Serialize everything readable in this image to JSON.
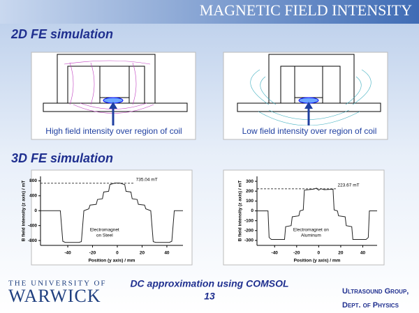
{
  "header": {
    "title": "MAGNETIC FIELD INTENSITY"
  },
  "sections": {
    "sim2d": "2D FE simulation",
    "sim3d": "3D FE simulation"
  },
  "captions": [
    "High field intensity over region of coil",
    "Low field intensity over region of coil"
  ],
  "footer": {
    "university_top": "THE UNIVERSITY OF",
    "university": "WARWICK",
    "note": "DC approximation using COMSOL",
    "page": "13",
    "group": "Ultrasound Group,",
    "dept": "Dept. of Physics"
  },
  "chart_data": [
    {
      "type": "line",
      "xlabel": "Position (y axis) / mm",
      "ylabel": "B field intensity (z axis) / mT",
      "color": "#222222",
      "xlim": [
        -62,
        53
      ],
      "ylim": [
        -930,
        920
      ],
      "xticks": [
        -40,
        -20,
        0,
        20,
        40
      ],
      "yticks": [
        800,
        400,
        0,
        -400,
        -800
      ],
      "annotation": {
        "value": 735.04,
        "label": "735.04 mT"
      },
      "inset_label": [
        "Electromagnet",
        "on Steel"
      ],
      "x": [
        -62,
        -46,
        -44,
        -42,
        -31,
        -29,
        -27,
        -23,
        -22,
        -17,
        -16,
        -12,
        -11,
        -7,
        -6,
        -2,
        2,
        6,
        7,
        11,
        12,
        16,
        17,
        22,
        23,
        27,
        29,
        31,
        42,
        44,
        46,
        53
      ],
      "values": [
        0,
        0,
        -820,
        -850,
        -850,
        -830,
        0,
        50,
        150,
        170,
        300,
        320,
        500,
        520,
        700,
        740,
        740,
        700,
        520,
        500,
        320,
        300,
        170,
        150,
        50,
        0,
        -830,
        -850,
        -850,
        -820,
        0,
        0
      ]
    },
    {
      "type": "line",
      "xlabel": "Position (y axis) / mm",
      "ylabel": "B field intensity (z axis) / mT",
      "color": "#222222",
      "xlim": [
        -56,
        53
      ],
      "ylim": [
        -350,
        350
      ],
      "xticks": [
        -40,
        -20,
        0,
        20,
        40
      ],
      "yticks": [
        300,
        200,
        100,
        0,
        -100,
        -200,
        -300
      ],
      "annotation": {
        "value": 223.67,
        "label": "223.67 mT"
      },
      "inset_label": [
        "Electromagnet on",
        "Aluminum"
      ],
      "x": [
        -56,
        -46,
        -45,
        -43,
        -31,
        -30,
        -25,
        -24,
        -18,
        -17,
        -14,
        -13,
        -5,
        -2,
        0,
        2,
        5,
        13,
        14,
        17,
        18,
        24,
        25,
        30,
        31,
        43,
        45,
        46,
        53
      ],
      "values": [
        0,
        0,
        -270,
        -290,
        -290,
        -160,
        -150,
        -60,
        -50,
        0,
        10,
        210,
        220,
        230,
        210,
        225,
        215,
        220,
        10,
        0,
        -50,
        -60,
        -150,
        -160,
        -290,
        -290,
        -270,
        0,
        0
      ]
    }
  ]
}
